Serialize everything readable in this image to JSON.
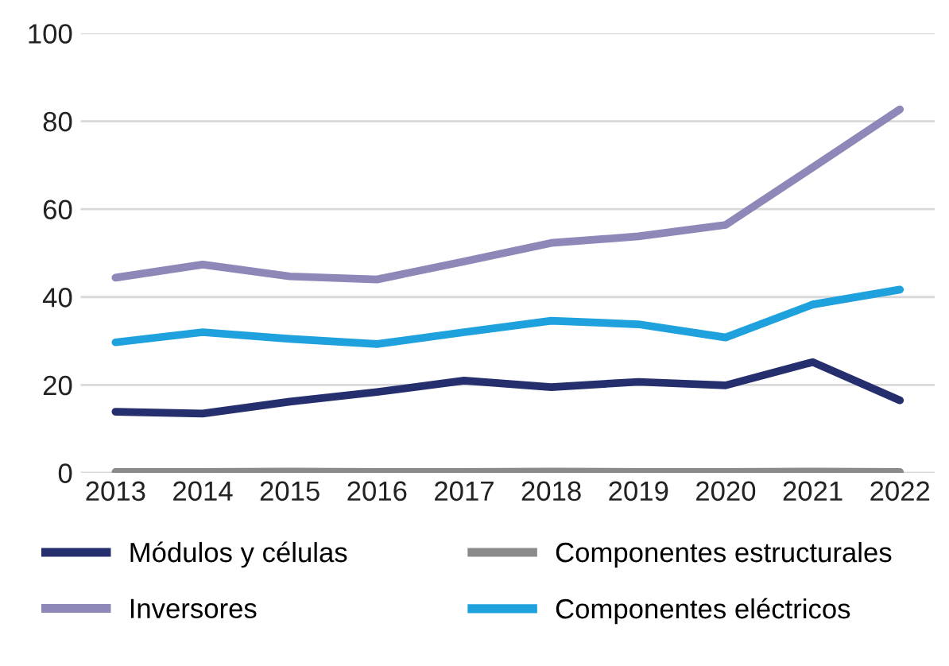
{
  "chart_data": {
    "type": "line",
    "categories": [
      "2013",
      "2014",
      "2015",
      "2016",
      "2017",
      "2018",
      "2019",
      "2020",
      "2021",
      "2022"
    ],
    "series": [
      {
        "name": "Módulos y células",
        "color": "#262f6e",
        "values": [
          13.9,
          13.5,
          16.2,
          18.4,
          21,
          19.5,
          20.7,
          19.9,
          25.2,
          16.5
        ]
      },
      {
        "name": "Inversores",
        "color": "#8e88b9",
        "values": [
          44.4,
          47.4,
          44.7,
          44,
          48.1,
          52.3,
          53.8,
          56.4,
          69.5,
          82.7
        ]
      },
      {
        "name": "Componentes estructurales",
        "color": "#8a8a8a",
        "values": [
          0.2,
          0.2,
          0.3,
          0.2,
          0.2,
          0.3,
          0.2,
          0.2,
          0.3,
          0.2
        ]
      },
      {
        "name": "Componentes eléctricos",
        "color": "#1ea1dc",
        "values": [
          29.7,
          32,
          30.5,
          29.3,
          32,
          34.6,
          33.8,
          30.8,
          38.3,
          41.7
        ]
      }
    ],
    "ylim": [
      0,
      100
    ],
    "yticks": [
      0,
      20,
      40,
      60,
      80,
      100
    ],
    "grid": "y",
    "legend": "bottom",
    "marker": "none",
    "line_style": "solid"
  }
}
